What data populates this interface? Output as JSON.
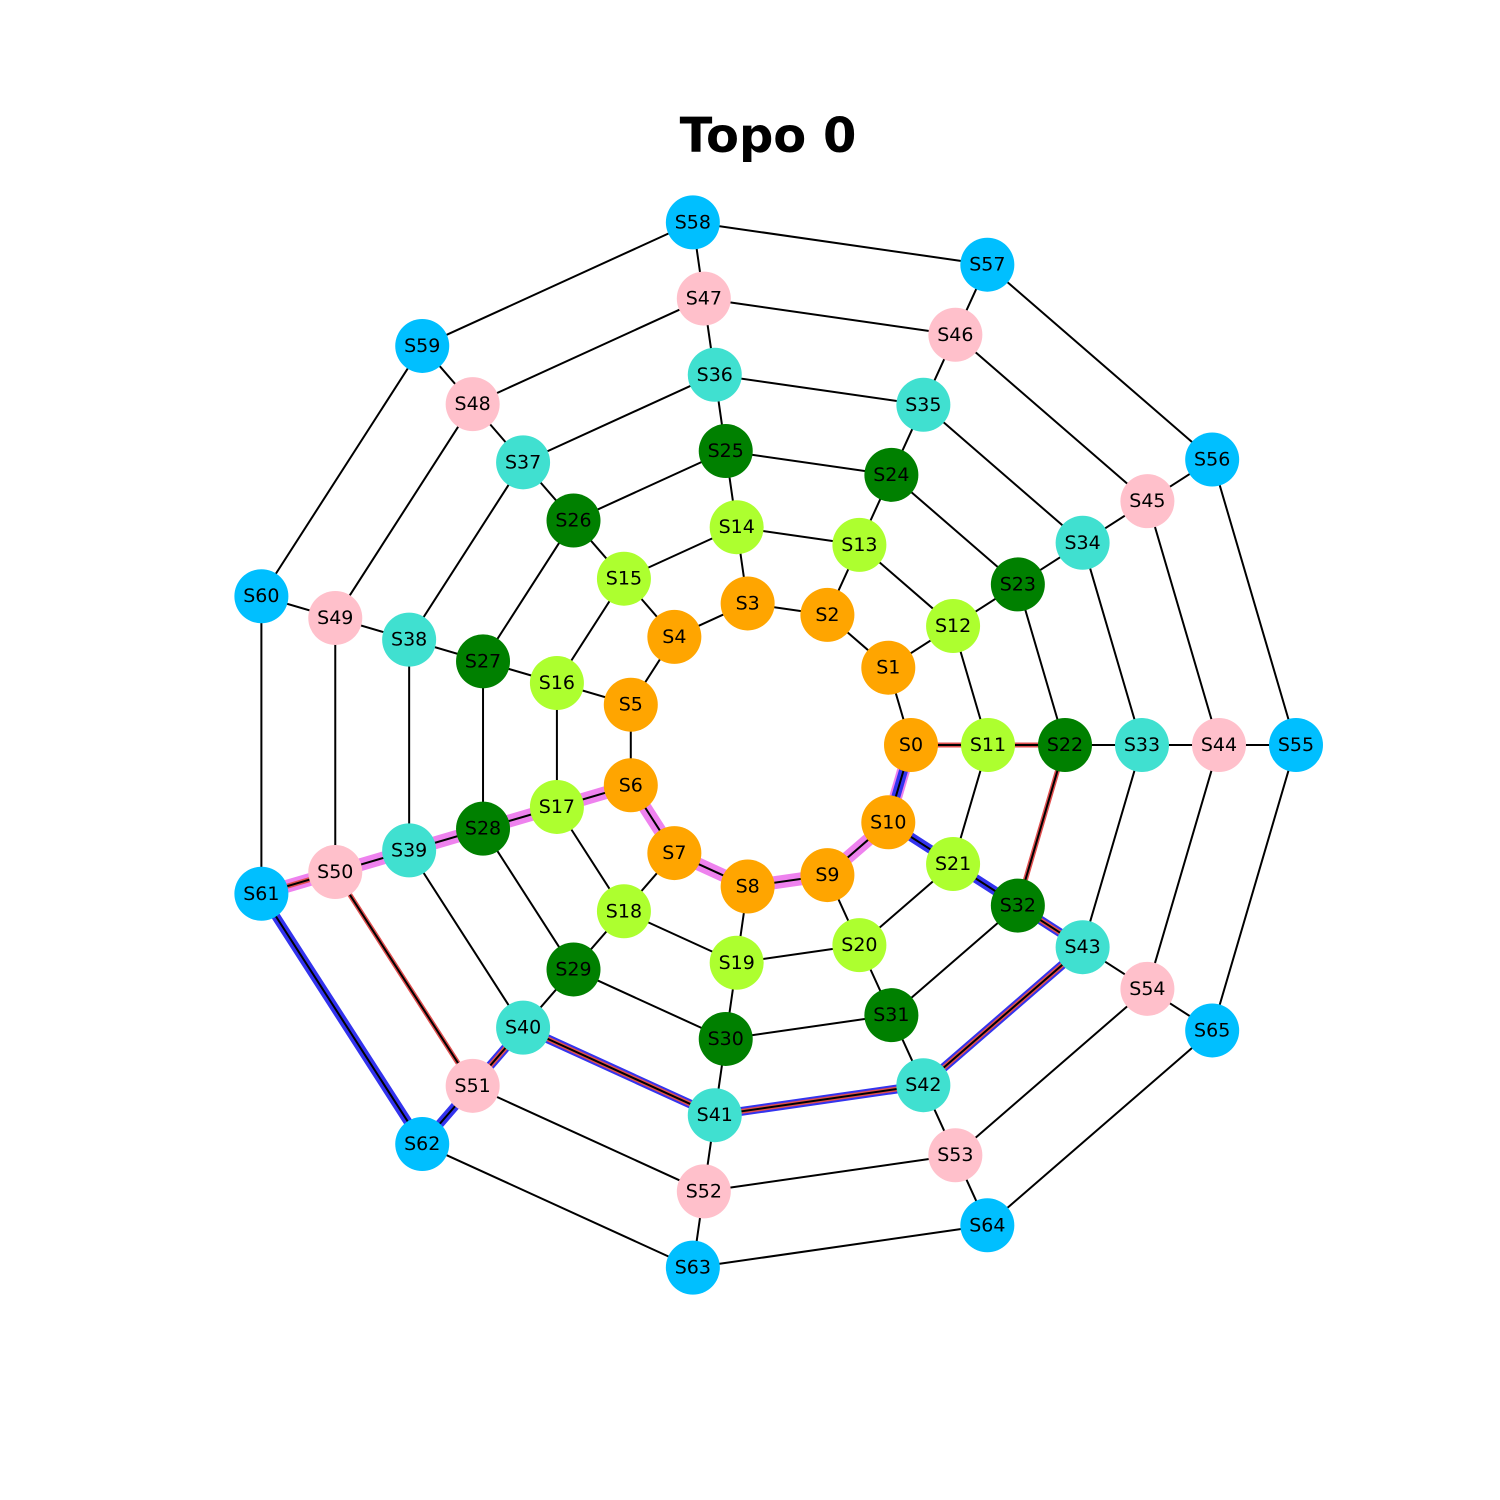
{
  "title": "Topo 0",
  "colors": {
    "ring0": "#FFA500",
    "ring1": "#ADFF2F",
    "ring2": "#008000",
    "ring3": "#40E0D0",
    "ring4": "#FFC0CB",
    "ring5": "#00BFFF",
    "edge": "#000000",
    "path_violet": "#EE82EE",
    "path_blue": "#3333EE",
    "path_red": "#E05050"
  },
  "rings": [
    [
      "S0",
      "S1",
      "S2",
      "S3",
      "S4",
      "S5",
      "S6",
      "S7",
      "S8",
      "S9",
      "S10"
    ],
    [
      "S11",
      "S12",
      "S13",
      "S14",
      "S15",
      "S16",
      "S17",
      "S18",
      "S19",
      "S20",
      "S21"
    ],
    [
      "S22",
      "S23",
      "S24",
      "S25",
      "S26",
      "S27",
      "S28",
      "S29",
      "S30",
      "S31",
      "S32"
    ],
    [
      "S33",
      "S34",
      "S35",
      "S36",
      "S37",
      "S38",
      "S39",
      "S40",
      "S41",
      "S42",
      "S43"
    ],
    [
      "S44",
      "S45",
      "S46",
      "S47",
      "S48",
      "S49",
      "S50",
      "S51",
      "S52",
      "S53",
      "S54"
    ],
    [
      "S55",
      "S56",
      "S57",
      "S58",
      "S59",
      "S60",
      "S61",
      "S62",
      "S63",
      "S64",
      "S65"
    ]
  ],
  "highlighted_paths": [
    {
      "color": "path_violet",
      "nodes": [
        "S61",
        "S50",
        "S39",
        "S28",
        "S17",
        "S6",
        "S7",
        "S8",
        "S9",
        "S10",
        "S0"
      ]
    },
    {
      "color": "path_blue",
      "nodes": [
        "S0",
        "S10",
        "S21",
        "S32",
        "S43",
        "S42",
        "S41",
        "S40",
        "S51",
        "S62",
        "S61"
      ]
    },
    {
      "color": "path_red",
      "nodes": [
        "S0",
        "S11",
        "S22",
        "S32",
        "S43",
        "S42",
        "S41",
        "S40",
        "S51",
        "S50",
        "S61"
      ]
    }
  ]
}
